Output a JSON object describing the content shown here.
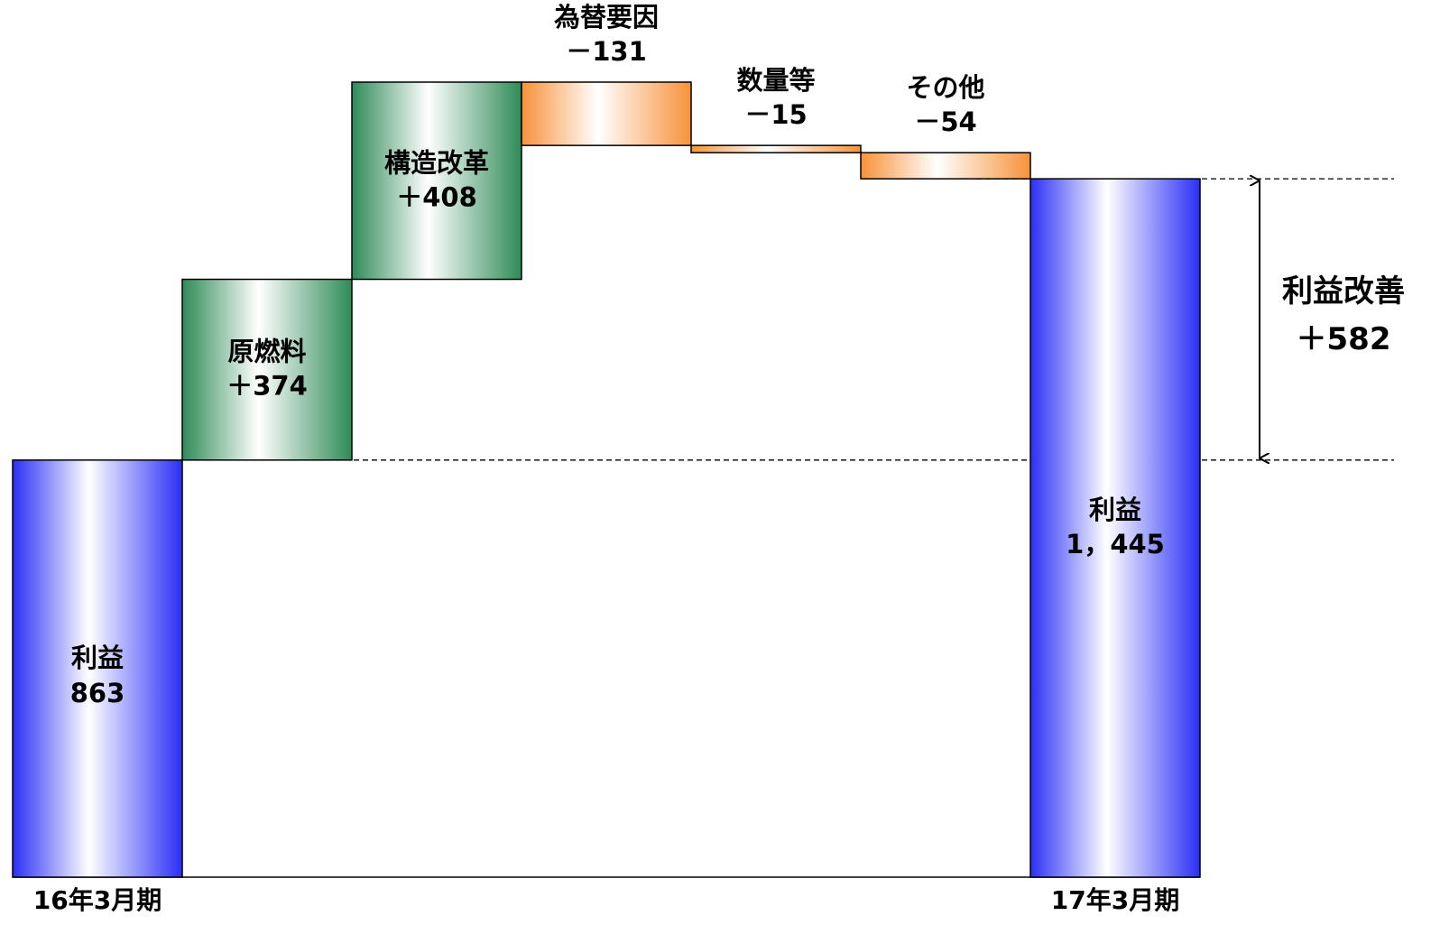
{
  "chart_data": {
    "type": "waterfall",
    "grid": false,
    "colors": {
      "total": "#2a2ff5",
      "increase": "#2e8b57",
      "decrease": "#f7923a"
    },
    "bars": [
      {
        "name": "利益",
        "value": "863",
        "kind": "total",
        "start": 0,
        "end": 863,
        "x_label": "16年3月期"
      },
      {
        "name": "原燃料",
        "value": "＋374",
        "kind": "increase",
        "start": 863,
        "end": 1237
      },
      {
        "name": "構造改革",
        "value": "＋408",
        "kind": "increase",
        "start": 1237,
        "end": 1645
      },
      {
        "name": "為替要因",
        "value": "－131",
        "kind": "decrease",
        "start": 1645,
        "end": 1514
      },
      {
        "name": "数量等",
        "value": "－15",
        "kind": "decrease",
        "start": 1514,
        "end": 1499
      },
      {
        "name": "その他",
        "value": "－54",
        "kind": "decrease",
        "start": 1499,
        "end": 1445
      },
      {
        "name": "利益",
        "value": "1，445",
        "kind": "total",
        "start": 0,
        "end": 1445,
        "x_label": "17年3月期"
      }
    ],
    "annotation": {
      "name": "利益改善",
      "value": "＋582",
      "from": 863,
      "to": 1445
    },
    "ylim": [
      0,
      1645
    ]
  }
}
